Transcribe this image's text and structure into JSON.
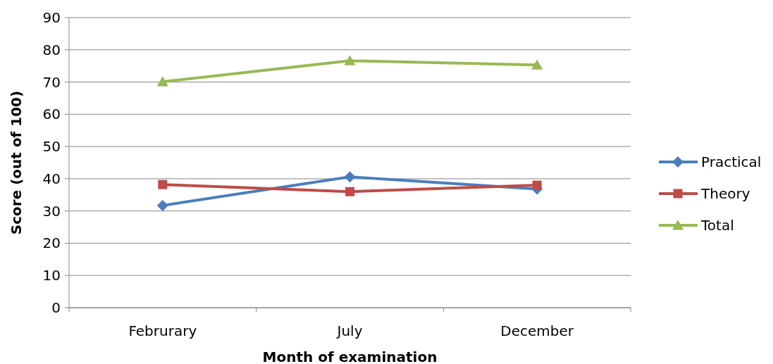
{
  "chart_data": {
    "type": "line",
    "xlabel": "Month of examination",
    "ylabel": "Score (out of 100)",
    "categories": [
      "Februrary",
      "July",
      "December"
    ],
    "series": [
      {
        "name": "Practical",
        "color": "#4a7ebb",
        "values": [
          31.7,
          40.6,
          36.8
        ],
        "marker": "diamond"
      },
      {
        "name": "Theory",
        "color": "#be4b48",
        "values": [
          38.2,
          36.0,
          38.0
        ],
        "marker": "square"
      },
      {
        "name": "Total",
        "color": "#98b954",
        "values": [
          70.1,
          76.6,
          75.3
        ],
        "marker": "triangle"
      }
    ],
    "ylim": [
      0,
      90
    ],
    "yticks": [
      0,
      10,
      20,
      30,
      40,
      50,
      60,
      70,
      80,
      90
    ],
    "grid": "y",
    "legend": "right"
  }
}
